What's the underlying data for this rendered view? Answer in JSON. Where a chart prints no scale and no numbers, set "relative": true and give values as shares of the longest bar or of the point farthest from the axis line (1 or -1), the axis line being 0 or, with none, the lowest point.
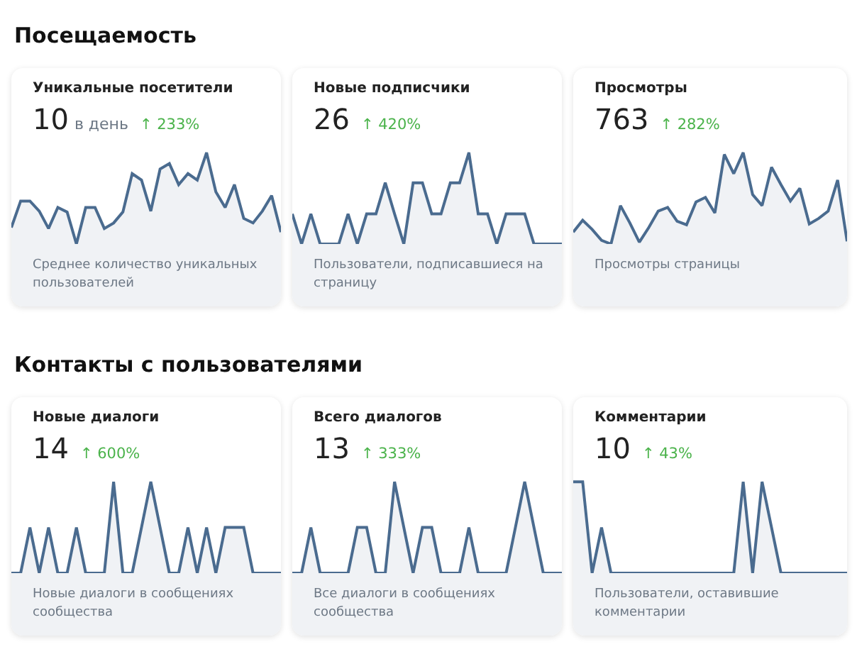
{
  "chart_data": [
    {
      "type": "line",
      "relative": true,
      "color": "#4a6b8f",
      "title": "Уникальные посетители",
      "subtitle": "10 в день",
      "annotations": [
        "Посещаемость",
        "↑ 233%",
        "Среднее количество уникальных пользователей"
      ],
      "categories": [
        null,
        null,
        null,
        null,
        null,
        null,
        null,
        null,
        null,
        null,
        null,
        null,
        null,
        null,
        null,
        null,
        null,
        null,
        null,
        null,
        null,
        null,
        null,
        null,
        null,
        null,
        null,
        null,
        null,
        null
      ],
      "values": [
        0.18,
        0.47,
        0.47,
        0.36,
        0.17,
        0.4,
        0.35,
        0,
        0.4,
        0.4,
        0.17,
        0.23,
        0.35,
        0.77,
        0.7,
        0.36,
        0.82,
        0.88,
        0.65,
        0.77,
        0.7,
        1,
        0.57,
        0.4,
        0.65,
        0.28,
        0.23,
        0.36,
        0.53,
        0.13
      ]
    },
    {
      "type": "line",
      "relative": true,
      "color": "#4a6b8f",
      "title": "Новые подписчики",
      "subtitle": "26",
      "annotations": [
        "↑ 420%",
        "Пользователи, подписавшиеся на страницу"
      ],
      "categories": [
        null,
        null,
        null,
        null,
        null,
        null,
        null,
        null,
        null,
        null,
        null,
        null,
        null,
        null,
        null,
        null,
        null,
        null,
        null,
        null,
        null,
        null,
        null,
        null,
        null,
        null,
        null,
        null,
        null,
        null
      ],
      "values": [
        0.33,
        0,
        0.33,
        0,
        0,
        0,
        0.33,
        0,
        0.33,
        0.33,
        0.67,
        0.33,
        0,
        0.67,
        0.67,
        0.33,
        0.33,
        0.67,
        0.67,
        1,
        0.33,
        0.33,
        0,
        0.33,
        0.33,
        0.33,
        0,
        0,
        0,
        0
      ]
    },
    {
      "type": "line",
      "relative": true,
      "color": "#4a6b8f",
      "title": "Просмотры",
      "subtitle": "763",
      "annotations": [
        "↑ 282%",
        "Просмотры страницы"
      ],
      "categories": [
        null,
        null,
        null,
        null,
        null,
        null,
        null,
        null,
        null,
        null,
        null,
        null,
        null,
        null,
        null,
        null,
        null,
        null,
        null,
        null,
        null,
        null,
        null,
        null,
        null,
        null,
        null,
        null,
        null,
        null
      ],
      "values": [
        0.13,
        0.26,
        0.16,
        0.04,
        0,
        0.42,
        0.23,
        0.02,
        0.18,
        0.36,
        0.4,
        0.25,
        0.21,
        0.46,
        0.51,
        0.34,
        0.98,
        0.77,
        1,
        0.54,
        0.42,
        0.84,
        0.65,
        0.47,
        0.61,
        0.22,
        0.28,
        0.36,
        0.7,
        0.03
      ]
    },
    {
      "type": "line",
      "relative": true,
      "color": "#4a6b8f",
      "title": "Новые диалоги",
      "subtitle": "14",
      "annotations": [
        "Контакты с пользователями",
        "↑ 600%",
        "Новые диалоги в сообщениях сообщества"
      ],
      "categories": [
        null,
        null,
        null,
        null,
        null,
        null,
        null,
        null,
        null,
        null,
        null,
        null,
        null,
        null,
        null,
        null,
        null,
        null,
        null,
        null,
        null,
        null,
        null,
        null,
        null,
        null,
        null,
        null,
        null,
        null
      ],
      "values": [
        0,
        0,
        0.5,
        0,
        0.5,
        0,
        0,
        0.5,
        0,
        0,
        0,
        1,
        0,
        0,
        0.5,
        1,
        0.5,
        0,
        0,
        0.5,
        0,
        0.5,
        0,
        0.5,
        0.5,
        0.5,
        0,
        0,
        0,
        0
      ]
    },
    {
      "type": "line",
      "relative": true,
      "color": "#4a6b8f",
      "title": "Всего диалогов",
      "subtitle": "13",
      "annotations": [
        "↑ 333%",
        "Все диалоги в сообщениях сообщества"
      ],
      "categories": [
        null,
        null,
        null,
        null,
        null,
        null,
        null,
        null,
        null,
        null,
        null,
        null,
        null,
        null,
        null,
        null,
        null,
        null,
        null,
        null,
        null,
        null,
        null,
        null,
        null,
        null,
        null,
        null,
        null,
        null
      ],
      "values": [
        0,
        0,
        0.5,
        0,
        0,
        0,
        0,
        0.5,
        0.5,
        0,
        0,
        1,
        0.5,
        0,
        0.5,
        0.5,
        0,
        0,
        0,
        0.5,
        0,
        0,
        0,
        0,
        0.5,
        1,
        0.5,
        0,
        0,
        0
      ]
    },
    {
      "type": "line",
      "relative": true,
      "color": "#4a6b8f",
      "title": "Комментарии",
      "subtitle": "10",
      "annotations": [
        "↑ 43%",
        "Пользователи, оставившие комментарии"
      ],
      "categories": [
        null,
        null,
        null,
        null,
        null,
        null,
        null,
        null,
        null,
        null,
        null,
        null,
        null,
        null,
        null,
        null,
        null,
        null,
        null,
        null,
        null,
        null,
        null,
        null,
        null,
        null,
        null,
        null,
        null,
        null
      ],
      "values": [
        1,
        1,
        0,
        0.5,
        0,
        0,
        0,
        0,
        0,
        0,
        0,
        0,
        0,
        0,
        0,
        0,
        0,
        0,
        1,
        0,
        1,
        0.5,
        0,
        0,
        0,
        0,
        0,
        0,
        0,
        0
      ]
    }
  ]
}
